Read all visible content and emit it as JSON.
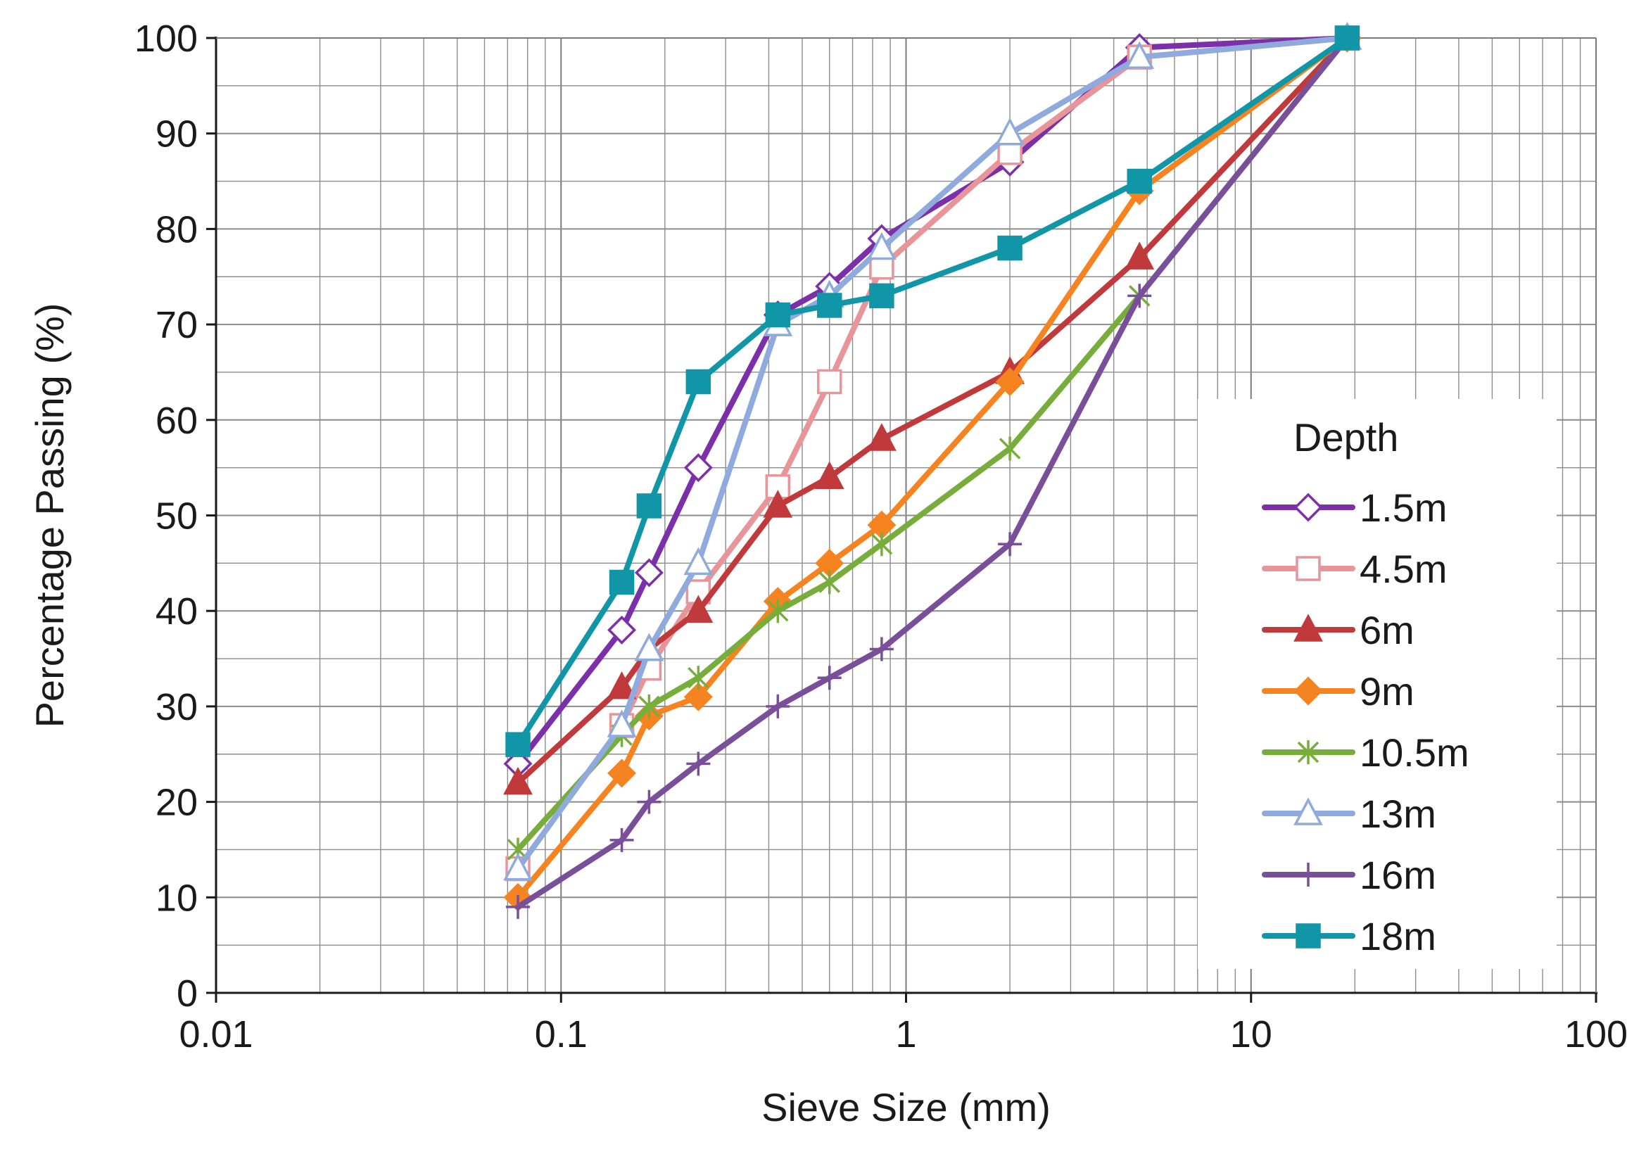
{
  "chart_data": {
    "type": "line",
    "title": "",
    "xlabel": "Sieve Size (mm)",
    "ylabel": "Percentage Passing (%)",
    "xscale": "log",
    "xlim": [
      0.01,
      100
    ],
    "ylim": [
      0,
      100
    ],
    "grid": true,
    "x_tick_labels": [
      "0.01",
      "0.1",
      "1",
      "10",
      "100"
    ],
    "y_tick_labels": [
      "0",
      "10",
      "20",
      "30",
      "40",
      "50",
      "60",
      "70",
      "80",
      "90",
      "100"
    ],
    "legend": {
      "title": "Depth",
      "placement": "right"
    },
    "x": [
      0.075,
      0.15,
      0.18,
      0.25,
      0.425,
      0.6,
      0.85,
      2,
      4.75,
      19
    ],
    "series": [
      {
        "name": "1.5m",
        "color": "#7B2FA8",
        "marker": "diamond-open",
        "values": [
          24,
          38,
          44,
          55,
          71,
          74,
          79,
          87,
          99,
          100
        ]
      },
      {
        "name": "4.5m",
        "color": "#E8959A",
        "marker": "square-open",
        "values": [
          13,
          28,
          34,
          42,
          53,
          64,
          76,
          88,
          98,
          100
        ]
      },
      {
        "name": "6m",
        "color": "#C0393B",
        "marker": "triangle",
        "values": [
          22,
          32,
          36,
          40,
          51,
          54,
          58,
          65,
          77,
          100
        ]
      },
      {
        "name": "9m",
        "color": "#F5831F",
        "marker": "diamond",
        "values": [
          10,
          23,
          29,
          31,
          41,
          45,
          49,
          64,
          84,
          100
        ]
      },
      {
        "name": "10.5m",
        "color": "#77AE3B",
        "marker": "asterisk",
        "values": [
          15,
          27,
          30,
          33,
          40,
          43,
          47,
          57,
          73,
          100
        ]
      },
      {
        "name": "13m",
        "color": "#8FAADC",
        "marker": "triangle-open",
        "values": [
          13,
          28,
          36,
          45,
          70,
          73,
          78,
          90,
          98,
          100
        ]
      },
      {
        "name": "16m",
        "color": "#7A4F9A",
        "marker": "plus",
        "values": [
          9,
          16,
          20,
          24,
          30,
          33,
          36,
          47,
          73,
          100
        ]
      },
      {
        "name": "18m",
        "color": "#1196A8",
        "marker": "square",
        "values": [
          26,
          43,
          51,
          64,
          71,
          72,
          73,
          78,
          85,
          100
        ]
      }
    ]
  }
}
